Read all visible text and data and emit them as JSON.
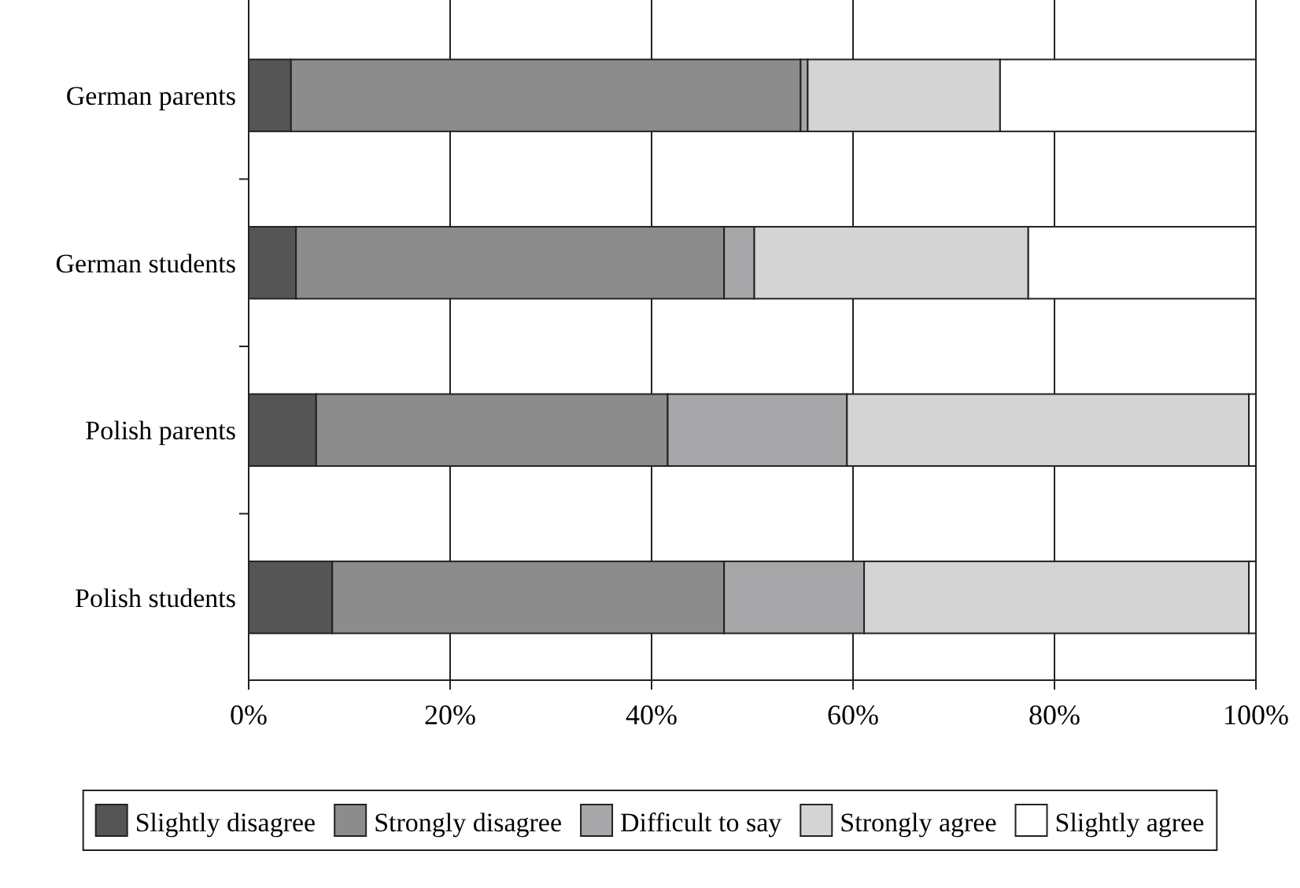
{
  "chart_data": {
    "type": "bar",
    "orientation": "horizontal",
    "stacked": true,
    "categories": [
      "German parents",
      "German students",
      "Polish parents",
      "Polish students"
    ],
    "series": [
      {
        "name": "Slightly disagree",
        "color": "#555555",
        "values": [
          4.2,
          4.7,
          6.7,
          8.3
        ]
      },
      {
        "name": "Strongly disagree",
        "color": "#8c8c8c",
        "values": [
          50.6,
          42.5,
          34.9,
          38.9
        ]
      },
      {
        "name": "Difficult to say",
        "color": "#a7a7aa",
        "values": [
          0.7,
          3.0,
          17.8,
          13.9
        ]
      },
      {
        "name": "Strongly agree",
        "color": "#d4d4d4",
        "values": [
          19.1,
          27.2,
          39.9,
          38.2
        ]
      },
      {
        "name": "Slightly agree",
        "color": "#ffffff",
        "values": [
          25.4,
          22.6,
          0.7,
          0.7
        ]
      }
    ],
    "xlim": [
      0,
      100
    ],
    "xticks": [
      {
        "value": 0,
        "label": "0%"
      },
      {
        "value": 20,
        "label": "20%"
      },
      {
        "value": 40,
        "label": "40%"
      },
      {
        "value": 60,
        "label": "60%"
      },
      {
        "value": 80,
        "label": "80%"
      },
      {
        "value": 100,
        "label": "100%"
      }
    ],
    "grid": "x",
    "legend": "bottom"
  }
}
